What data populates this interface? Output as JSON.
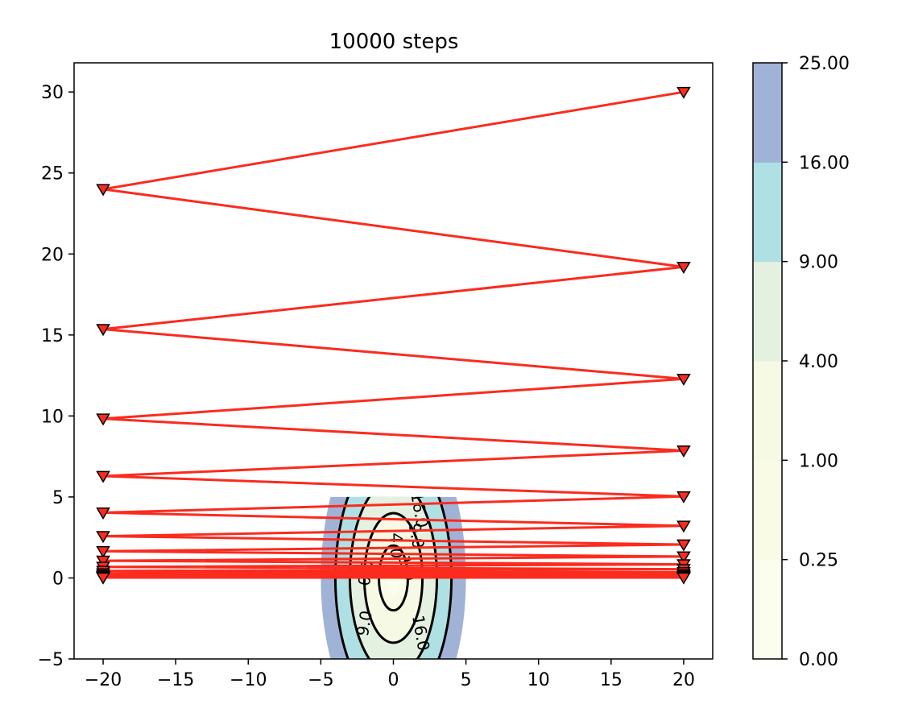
{
  "chart_data": {
    "type": "contour",
    "title": "10000 steps",
    "xlabel": "",
    "ylabel": "",
    "xlim": [
      -22,
      22
    ],
    "ylim": [
      -5,
      31.8
    ],
    "x_ticks": [
      -20,
      -15,
      -10,
      -5,
      0,
      5,
      10,
      15,
      20
    ],
    "x_tick_labels": [
      "−20",
      "−15",
      "−10",
      "−5",
      "0",
      "5",
      "10",
      "15",
      "20"
    ],
    "y_ticks": [
      -5,
      0,
      5,
      10,
      15,
      20,
      25,
      30
    ],
    "y_tick_labels": [
      "−5",
      "0",
      "5",
      "10",
      "15",
      "20",
      "25",
      "30"
    ],
    "grid": false,
    "contour": {
      "function": "f(x, y) = x^2 + y^2 / 4",
      "levels": [
        0.0,
        0.25,
        1.0,
        4.0,
        9.0,
        16.0,
        25.0
      ],
      "level_colors": [
        "#fbfdee",
        "#f9fbe6",
        "#f6f9e3",
        "#e4f1e1",
        "#afe0e4",
        "#a0b3d6"
      ],
      "line_levels": [
        1.0,
        4.0,
        9.0,
        16.0
      ],
      "domain_y": [
        -5,
        5
      ],
      "label_texts": [
        "16.0",
        "9.0",
        "4.0",
        "1.0",
        "0.0",
        "9.0",
        "16.0"
      ]
    },
    "trajectory": {
      "color": "#fb2b1e",
      "marker": "triangle-down",
      "points": [
        [
          20,
          30.0
        ],
        [
          -20,
          24.0
        ],
        [
          20,
          19.2
        ],
        [
          -20,
          15.36
        ],
        [
          20,
          12.29
        ],
        [
          -20,
          9.83
        ],
        [
          20,
          7.86
        ],
        [
          -20,
          6.29
        ],
        [
          20,
          5.03
        ],
        [
          -20,
          4.03
        ],
        [
          20,
          3.22
        ],
        [
          -20,
          2.58
        ],
        [
          20,
          2.06
        ],
        [
          -20,
          1.65
        ],
        [
          20,
          1.32
        ],
        [
          -20,
          1.06
        ],
        [
          20,
          0.84
        ],
        [
          -20,
          0.68
        ],
        [
          20,
          0.54
        ],
        [
          -20,
          0.43
        ],
        [
          20,
          0.35
        ],
        [
          -20,
          0.28
        ],
        [
          20,
          0.22
        ],
        [
          -20,
          0.18
        ],
        [
          20,
          0.14
        ],
        [
          -20,
          0.11
        ],
        [
          20,
          0.09
        ],
        [
          -20,
          0.07
        ],
        [
          20,
          0.06
        ],
        [
          -20,
          0.05
        ],
        [
          20,
          0.04
        ],
        [
          -20,
          0.03
        ],
        [
          20,
          0.02
        ],
        [
          -20,
          0.02
        ]
      ]
    },
    "colorbar": {
      "tick_labels": [
        "0.00",
        "0.25",
        "1.00",
        "4.00",
        "9.00",
        "16.00",
        "25.00"
      ]
    }
  }
}
